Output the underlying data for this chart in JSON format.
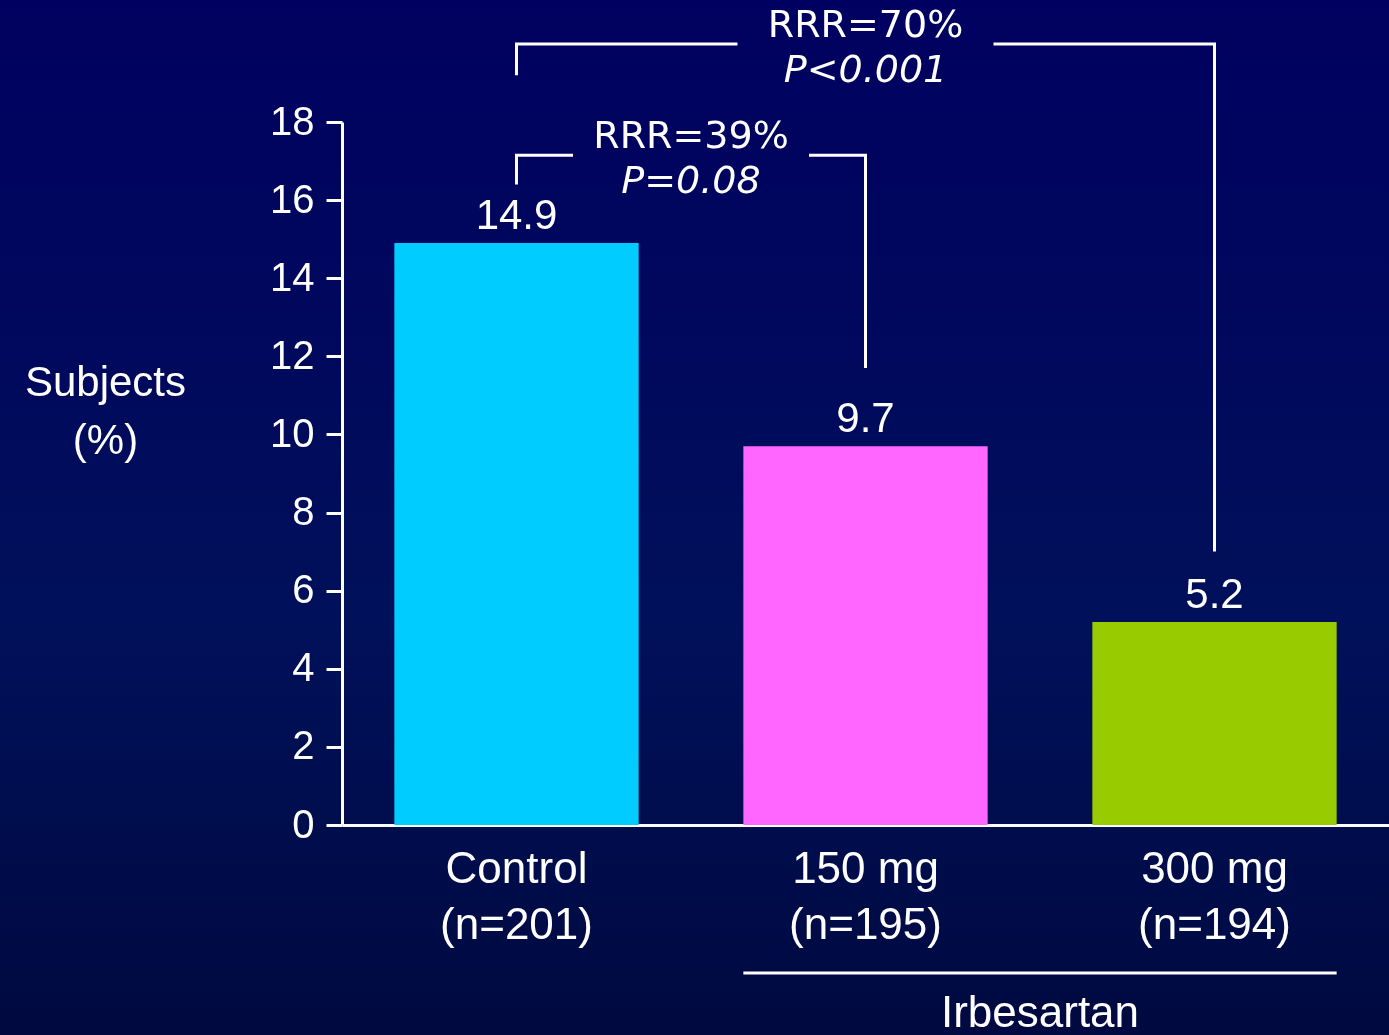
{
  "chart_data": {
    "type": "bar",
    "ylabel": "Subjects\n(%)",
    "categories": [
      "Control\n(n=201)",
      "150 mg\n(n=195)",
      "300 mg\n(n=194)"
    ],
    "values": [
      14.9,
      9.7,
      5.2
    ],
    "colors": [
      "#00ccff",
      "#ff66ff",
      "#99cc00"
    ],
    "ylim": [
      0,
      18
    ],
    "yticks": [
      0,
      2,
      4,
      6,
      8,
      10,
      12,
      14,
      16,
      18
    ],
    "data_labels": true,
    "annotations": [
      "RRR=39%",
      "P=0.08",
      "RRR=70%",
      "P<0.001",
      "Irbesartan"
    ]
  }
}
